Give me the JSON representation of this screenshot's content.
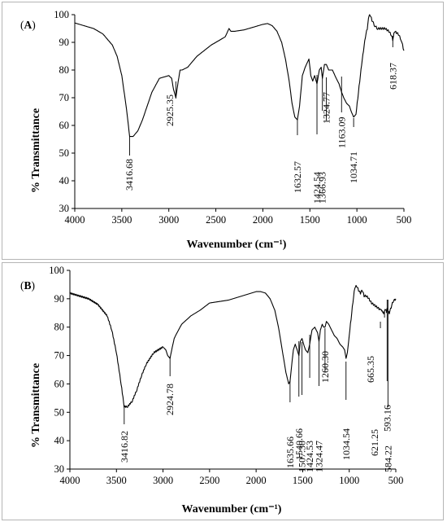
{
  "chart_data": [
    {
      "type": "line",
      "panel_label": "A",
      "xlabel": "Wavenumber (cm⁻¹)",
      "ylabel": "% Transmittance",
      "xlim": [
        4000,
        500
      ],
      "ylim": [
        30,
        100
      ],
      "x_ticks": [
        4000,
        3500,
        3000,
        2500,
        2000,
        1500,
        1000,
        500
      ],
      "y_ticks": [
        30,
        40,
        50,
        60,
        70,
        80,
        90,
        100
      ],
      "grid": false,
      "series": [
        {
          "x": [
            4000,
            3900,
            3800,
            3700,
            3600,
            3550,
            3500,
            3450,
            3416.68,
            3380,
            3330,
            3280,
            3230,
            3180,
            3100,
            3000,
            2970,
            2950,
            2925.35,
            2900,
            2880,
            2860,
            2800,
            2700,
            2550,
            2400,
            2360,
            2340,
            2300,
            2200,
            2100,
            2000,
            1950,
            1900,
            1850,
            1800,
            1760,
            1720,
            1690,
            1660,
            1632.57,
            1610,
            1580,
            1550,
            1510,
            1490,
            1470,
            1450,
            1424.54,
            1400,
            1380,
            1366.93,
            1345,
            1324.77,
            1300,
            1260,
            1220,
            1190,
            1163.09,
            1140,
            1110,
            1080,
            1060,
            1034.71,
            1010,
            990,
            970,
            950,
            930,
            910,
            890,
            870,
            860,
            840,
            810,
            780,
            740,
            700,
            660,
            640,
            618.37,
            600,
            560,
            530,
            500
          ],
          "y": [
            97,
            96,
            95,
            93,
            89,
            85,
            78,
            66,
            56,
            56,
            58,
            62,
            67,
            72,
            77,
            78,
            77,
            73,
            70,
            76,
            80,
            80,
            81,
            85,
            89,
            92,
            95,
            94,
            94,
            94.5,
            95.5,
            96.5,
            96.8,
            96,
            94,
            90,
            84,
            76,
            68,
            63,
            62,
            67,
            78,
            81,
            84,
            78,
            76,
            78,
            75,
            80,
            81,
            77,
            82,
            82,
            80,
            80,
            77,
            75,
            72,
            70,
            68,
            67,
            65,
            63,
            64,
            70,
            76,
            82,
            87,
            92,
            95,
            100,
            100,
            98,
            96,
            95,
            95,
            95,
            94,
            93,
            91,
            94,
            93,
            91,
            87
          ]
        }
      ],
      "annotations": [
        "3416.68",
        "2925.35",
        "1632.57",
        "1424.54",
        "1366.93",
        "1324.77",
        "1163.09",
        "1034.71",
        "618.37"
      ]
    },
    {
      "type": "line",
      "panel_label": "B",
      "xlabel": "Wavenumber (cm⁻¹)",
      "ylabel": "% Transmittance",
      "xlim": [
        4000,
        500
      ],
      "ylim": [
        30,
        100
      ],
      "x_ticks": [
        4000,
        3500,
        3000,
        2500,
        2000,
        1500,
        1000,
        500
      ],
      "y_ticks": [
        30,
        40,
        50,
        60,
        70,
        80,
        90,
        100
      ],
      "grid": false,
      "series": [
        {
          "x": [
            4000,
            3900,
            3800,
            3700,
            3600,
            3550,
            3500,
            3450,
            3416.82,
            3380,
            3330,
            3280,
            3230,
            3180,
            3100,
            3000,
            2970,
            2950,
            2924.78,
            2900,
            2880,
            2850,
            2800,
            2700,
            2600,
            2500,
            2400,
            2300,
            2200,
            2100,
            2000,
            1950,
            1900,
            1850,
            1800,
            1760,
            1720,
            1680,
            1650,
            1635.66,
            1620,
            1600,
            1580,
            1560,
            1540.66,
            1525,
            1507.3,
            1490,
            1470,
            1445,
            1424.53,
            1400,
            1370,
            1340,
            1324.47,
            1310,
            1290,
            1275,
            1260.3,
            1245,
            1220,
            1190,
            1160,
            1130,
            1100,
            1070,
            1050,
            1034.54,
            1020,
            1000,
            980,
            960,
            940,
            920,
            900,
            880,
            860,
            840,
            820,
            800,
            780,
            760,
            740,
            720,
            700,
            680,
            665.35,
            650,
            640,
            630,
            621.25,
            610,
            600,
            593.16,
            584.22,
            570,
            550,
            530,
            500
          ],
          "y": [
            92,
            91,
            90,
            88,
            84,
            79,
            71,
            60,
            52,
            52,
            54,
            58,
            63,
            67,
            71,
            73,
            72,
            70,
            69,
            73,
            76,
            78,
            81,
            84,
            86,
            88.5,
            89,
            89.5,
            90.5,
            91.5,
            92.5,
            92.5,
            92,
            90,
            86,
            80,
            72,
            64,
            60,
            61,
            66,
            72,
            74,
            72,
            70,
            75,
            76,
            74,
            72,
            71,
            74,
            79,
            80,
            78,
            75,
            79,
            81,
            80,
            80,
            82,
            81,
            79,
            77,
            76,
            74,
            73,
            72,
            69,
            71,
            77,
            83,
            89,
            94,
            94.5,
            93,
            92,
            93,
            91,
            91,
            90.5,
            89.5,
            88.5,
            88,
            87.5,
            87,
            86.5,
            86.5,
            86,
            85.5,
            85,
            86,
            86.5,
            85.5,
            87,
            86,
            85,
            87,
            89,
            90
          ]
        }
      ],
      "annotations": [
        "3416.82",
        "2924.78",
        "1635.66",
        "1540.66",
        "1507.30",
        "1424.53",
        "1324.47",
        "1260.30",
        "1034.54",
        "665.35",
        "621.25",
        "593.16",
        "584.22"
      ]
    }
  ]
}
